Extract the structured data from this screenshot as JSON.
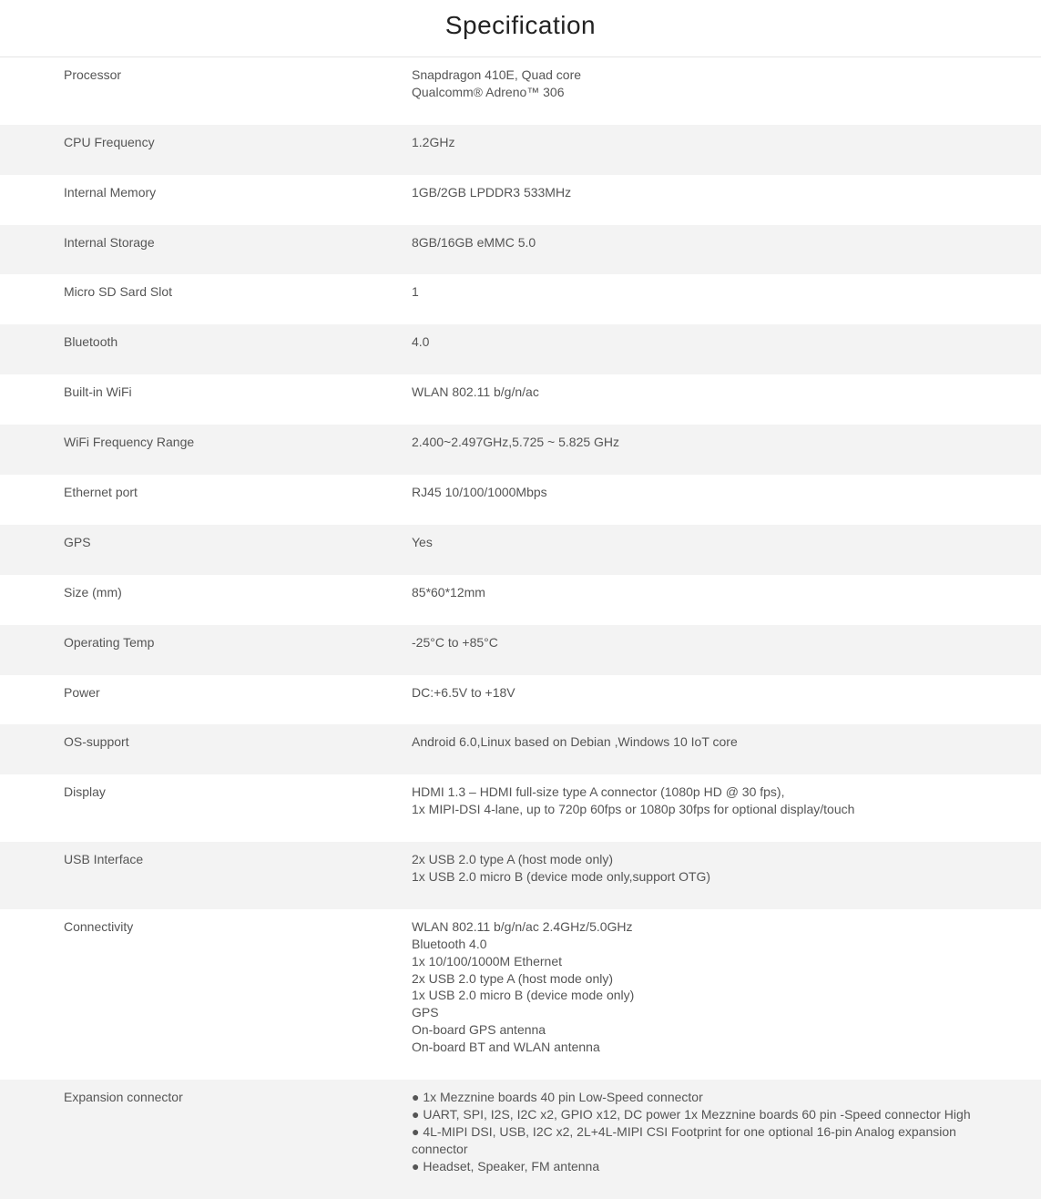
{
  "title": "Specification",
  "colors": {
    "row_alt_bg": "#f3f3f3",
    "row_bg": "#ffffff",
    "text": "#555555",
    "border": "#e5e5e5"
  },
  "rows": [
    {
      "label": "Processor",
      "value_lines": [
        "Snapdragon 410E, Quad core",
        "Qualcomm® Adreno™ 306"
      ]
    },
    {
      "label": "CPU Frequency",
      "value_lines": [
        "1.2GHz"
      ]
    },
    {
      "label": "Internal Memory",
      "value_lines": [
        "1GB/2GB LPDDR3 533MHz"
      ]
    },
    {
      "label": "Internal Storage",
      "value_lines": [
        "8GB/16GB eMMC 5.0"
      ]
    },
    {
      "label": "Micro SD Sard Slot",
      "value_lines": [
        "1"
      ]
    },
    {
      "label": "Bluetooth",
      "value_lines": [
        "4.0"
      ]
    },
    {
      "label": "Built-in WiFi",
      "value_lines": [
        "WLAN 802.11 b/g/n/ac"
      ]
    },
    {
      "label": "WiFi Frequency Range",
      "value_lines": [
        "2.400~2.497GHz,5.725 ~ 5.825 GHz"
      ]
    },
    {
      "label": "Ethernet port",
      "value_lines": [
        "RJ45 10/100/1000Mbps"
      ]
    },
    {
      "label": "GPS",
      "value_lines": [
        "Yes"
      ]
    },
    {
      "label": "Size (mm)",
      "value_lines": [
        "85*60*12mm"
      ]
    },
    {
      "label": "Operating Temp",
      "value_lines": [
        "-25°C to +85°C"
      ]
    },
    {
      "label": "Power",
      "value_lines": [
        "DC:+6.5V to +18V"
      ]
    },
    {
      "label": "OS-support",
      "value_lines": [
        "Android 6.0,Linux based on Debian ,Windows 10 IoT core"
      ]
    },
    {
      "label": "Display",
      "value_lines": [
        "HDMI 1.3 – HDMI full-size type A connector (1080p HD @ 30 fps),",
        "1x MIPI-DSI 4-lane, up to 720p 60fps or 1080p 30fps for optional display/touch"
      ]
    },
    {
      "label": "USB Interface",
      "value_lines": [
        "2x USB 2.0 type A (host mode only)",
        "1x USB 2.0 micro B (device mode only,support OTG)"
      ]
    },
    {
      "label": "Connectivity",
      "value_lines": [
        "WLAN 802.11 b/g/n/ac 2.4GHz/5.0GHz",
        "Bluetooth 4.0",
        "1x 10/100/1000M Ethernet",
        "2x USB 2.0 type A (host mode only)",
        "1x USB 2.0 micro B (device mode only)",
        "GPS",
        "On-board GPS antenna",
        "On-board BT and WLAN antenna"
      ]
    },
    {
      "label": "Expansion connector",
      "bullets": [
        "1x Mezznine boards 40 pin Low-Speed connector",
        "UART, SPI, I2S, I2C x2, GPIO x12, DC power 1x Mezznine boards 60 pin -Speed connector High",
        "4L-MIPI DSI, USB, I2C x2, 2L+4L-MIPI CSI Footprint for one optional 16-pin Analog expansion connector",
        "Headset, Speaker, FM antenna"
      ]
    }
  ]
}
